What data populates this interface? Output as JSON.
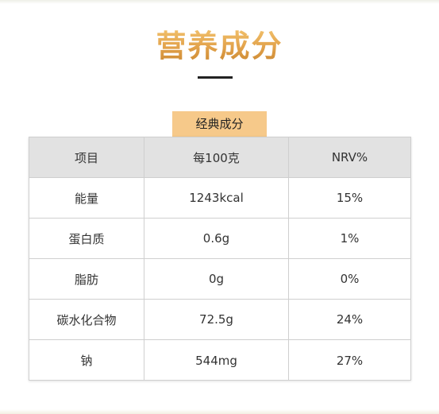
{
  "title": "营养成分",
  "section_tab": "经典成分",
  "table": {
    "headers": [
      "项目",
      "每100克",
      "NRV%"
    ],
    "rows": [
      [
        "能量",
        "1243kcal",
        "15%"
      ],
      [
        "蛋白质",
        "0.6g",
        "1%"
      ],
      [
        "脂肪",
        "0g",
        "0%"
      ],
      [
        "碳水化合物",
        "72.5g",
        "24%"
      ],
      [
        "钠",
        "544mg",
        "27%"
      ]
    ]
  },
  "colors": {
    "title_gold": "#e1a14a",
    "tab_background": "#f6c98a",
    "header_background": "#e2e2e2",
    "border": "#cfcfcf"
  }
}
